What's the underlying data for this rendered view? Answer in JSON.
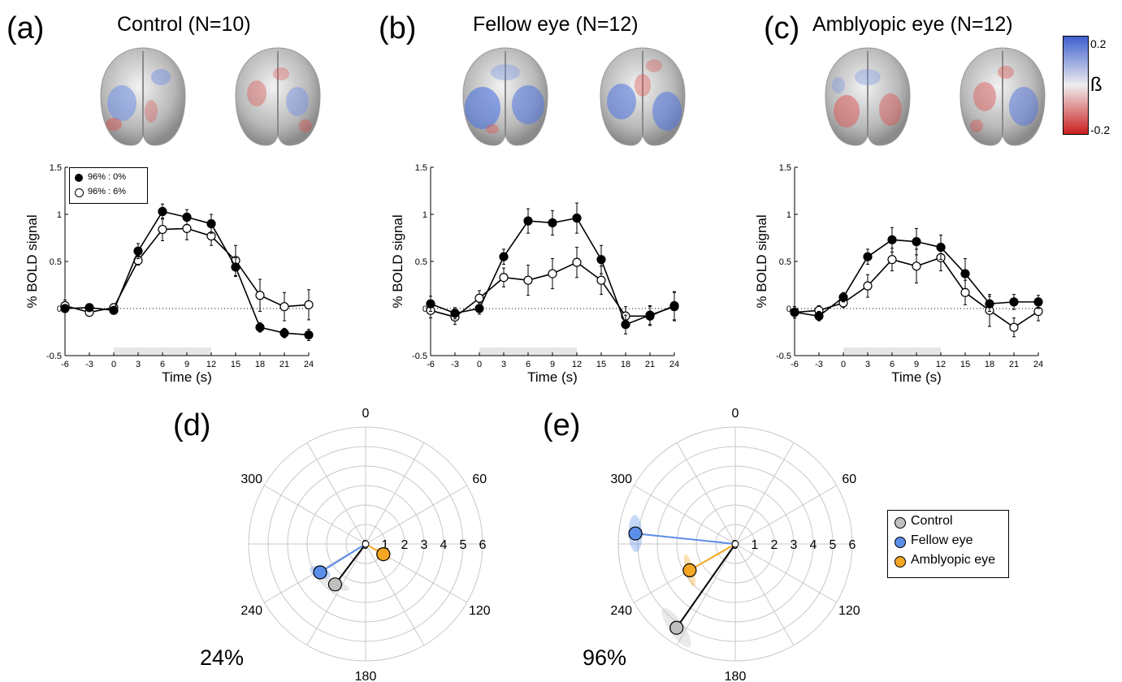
{
  "panels": [
    {
      "letter": "(a)",
      "title": "Control (N=10)"
    },
    {
      "letter": "(b)",
      "title": "Fellow eye (N=12)"
    },
    {
      "letter": "(c)",
      "title": "Amblyopic eye (N=12)"
    },
    {
      "letter": "(d)",
      "pct": "24%"
    },
    {
      "letter": "(e)",
      "pct": "96%"
    }
  ],
  "colorbar": {
    "max": "0.2",
    "min": "-0.2",
    "symbol": "ß",
    "color_high": "#3f5fd0",
    "color_mid": "#eeeeee",
    "color_low": "#cc1f1f"
  },
  "legend_line": {
    "entries": [
      "96% : 0%",
      "96% : 6%"
    ]
  },
  "legend_polar": {
    "entries": [
      {
        "label": "Control",
        "color": "#bfbfbf"
      },
      {
        "label": "Fellow eye",
        "color": "#5b8ee8"
      },
      {
        "label": "Amblyopic eye",
        "color": "#f5a623"
      }
    ]
  },
  "chart_data": [
    {
      "type": "line",
      "panel": "(a)",
      "xlabel": "Time (s)",
      "ylabel": "% BOLD signal",
      "xlim": [
        -6,
        24
      ],
      "ylim": [
        -0.5,
        1.5
      ],
      "xticks": [
        "-6",
        "-3",
        "0",
        "3",
        "6",
        "9",
        "12",
        "15",
        "18",
        "21",
        "24"
      ],
      "yticks": [
        "-0.5",
        "0",
        "0.5",
        "1",
        "1.5"
      ],
      "stimulus_block": [
        0,
        12
      ],
      "x": [
        -6,
        -3,
        0,
        3,
        6,
        9,
        12,
        15,
        18,
        21,
        24
      ],
      "series": [
        {
          "name": "96% : 0%",
          "values": [
            0.0,
            0.01,
            -0.02,
            0.61,
            1.03,
            0.97,
            0.9,
            0.44,
            -0.2,
            -0.26,
            -0.28
          ],
          "err": [
            0.04,
            0.03,
            0.04,
            0.08,
            0.08,
            0.08,
            0.1,
            0.1,
            0.05,
            0.05,
            0.06
          ]
        },
        {
          "name": "96% : 6%",
          "values": [
            0.03,
            -0.04,
            0.01,
            0.51,
            0.84,
            0.85,
            0.77,
            0.51,
            0.14,
            0.02,
            0.04
          ],
          "err": [
            0.06,
            0.03,
            0.04,
            0.05,
            0.12,
            0.12,
            0.1,
            0.16,
            0.17,
            0.15,
            0.16
          ]
        }
      ]
    },
    {
      "type": "line",
      "panel": "(b)",
      "xlabel": "Time (s)",
      "ylabel": "% BOLD signal",
      "xlim": [
        -6,
        24
      ],
      "ylim": [
        -0.5,
        1.5
      ],
      "xticks": [
        "-6",
        "-3",
        "0",
        "3",
        "6",
        "9",
        "12",
        "15",
        "18",
        "21",
        "24"
      ],
      "yticks": [
        "-0.5",
        "0",
        "0.5",
        "1",
        "1.5"
      ],
      "stimulus_block": [
        0,
        12
      ],
      "x": [
        -6,
        -3,
        0,
        3,
        6,
        9,
        12,
        15,
        18,
        21,
        24
      ],
      "series": [
        {
          "name": "96% : 0%",
          "values": [
            0.05,
            -0.05,
            0.0,
            0.55,
            0.93,
            0.91,
            0.96,
            0.52,
            -0.17,
            -0.07,
            0.02
          ],
          "err": [
            0.08,
            0.06,
            0.06,
            0.08,
            0.13,
            0.13,
            0.16,
            0.15,
            0.1,
            0.1,
            0.15
          ]
        },
        {
          "name": "96% : 6%",
          "values": [
            -0.02,
            -0.09,
            0.11,
            0.33,
            0.3,
            0.37,
            0.49,
            0.3,
            -0.08,
            -0.08,
            0.03
          ],
          "err": [
            0.08,
            0.08,
            0.08,
            0.1,
            0.16,
            0.16,
            0.16,
            0.15,
            0.1,
            0.1,
            0.15
          ]
        }
      ]
    },
    {
      "type": "line",
      "panel": "(c)",
      "xlabel": "Time (s)",
      "ylabel": "% BOLD signal",
      "xlim": [
        -6,
        24
      ],
      "ylim": [
        -0.5,
        1.5
      ],
      "xticks": [
        "-6",
        "-3",
        "0",
        "3",
        "6",
        "9",
        "12",
        "15",
        "18",
        "21",
        "24"
      ],
      "yticks": [
        "-0.5",
        "0",
        "0.5",
        "1",
        "1.5"
      ],
      "stimulus_block": [
        0,
        12
      ],
      "x": [
        -6,
        -3,
        0,
        3,
        6,
        9,
        12,
        15,
        18,
        21,
        24
      ],
      "series": [
        {
          "name": "96% : 0%",
          "values": [
            -0.04,
            -0.08,
            0.12,
            0.55,
            0.73,
            0.71,
            0.65,
            0.37,
            0.05,
            0.07,
            0.07
          ],
          "err": [
            0.06,
            0.05,
            0.05,
            0.08,
            0.13,
            0.14,
            0.13,
            0.16,
            0.08,
            0.08,
            0.07
          ]
        },
        {
          "name": "96% : 6%",
          "values": [
            -0.04,
            -0.02,
            0.06,
            0.24,
            0.52,
            0.45,
            0.54,
            0.17,
            -0.02,
            -0.2,
            -0.03
          ],
          "err": [
            0.06,
            0.05,
            0.05,
            0.12,
            0.12,
            0.18,
            0.14,
            0.13,
            0.17,
            0.1,
            0.1
          ]
        }
      ]
    },
    {
      "type": "polar",
      "panel": "(d)",
      "angle_ticks": [
        "0",
        "60",
        "120",
        "180",
        "240",
        "300"
      ],
      "radius_ticks": [
        "1",
        "2",
        "3",
        "4",
        "5",
        "6"
      ],
      "rmax": 6,
      "points": [
        {
          "name": "Control",
          "angle": 217,
          "r": 2.6,
          "color": "#bfbfbf",
          "ellipse": {
            "rx": 0.75,
            "ry": 0.22,
            "angle": 20
          }
        },
        {
          "name": "Fellow eye",
          "angle": 238,
          "r": 2.75,
          "color": "#5b8ee8",
          "ellipse": {
            "rx": 0.55,
            "ry": 0.3,
            "angle": 20
          }
        },
        {
          "name": "Amblyopic eye",
          "angle": 120,
          "r": 1.05,
          "color": "#f5a623",
          "ellipse": {
            "rx": 0.45,
            "ry": 0.18,
            "angle": 40
          }
        }
      ]
    },
    {
      "type": "polar",
      "panel": "(e)",
      "angle_ticks": [
        "0",
        "60",
        "120",
        "180",
        "240",
        "300"
      ],
      "radius_ticks": [
        "1",
        "2",
        "3",
        "4",
        "5",
        "6"
      ],
      "rmax": 6,
      "points": [
        {
          "name": "Control",
          "angle": 215,
          "r": 5.25,
          "color": "#bfbfbf",
          "ellipse": {
            "rx": 1.2,
            "ry": 0.38,
            "angle": 55
          }
        },
        {
          "name": "Fellow eye",
          "angle": 276,
          "r": 5.15,
          "color": "#5b8ee8",
          "ellipse": {
            "rx": 0.95,
            "ry": 0.35,
            "angle": 88
          }
        },
        {
          "name": "Amblyopic eye",
          "angle": 240,
          "r": 2.7,
          "color": "#f5a623",
          "ellipse": {
            "rx": 0.85,
            "ry": 0.2,
            "angle": 75
          }
        }
      ]
    }
  ]
}
